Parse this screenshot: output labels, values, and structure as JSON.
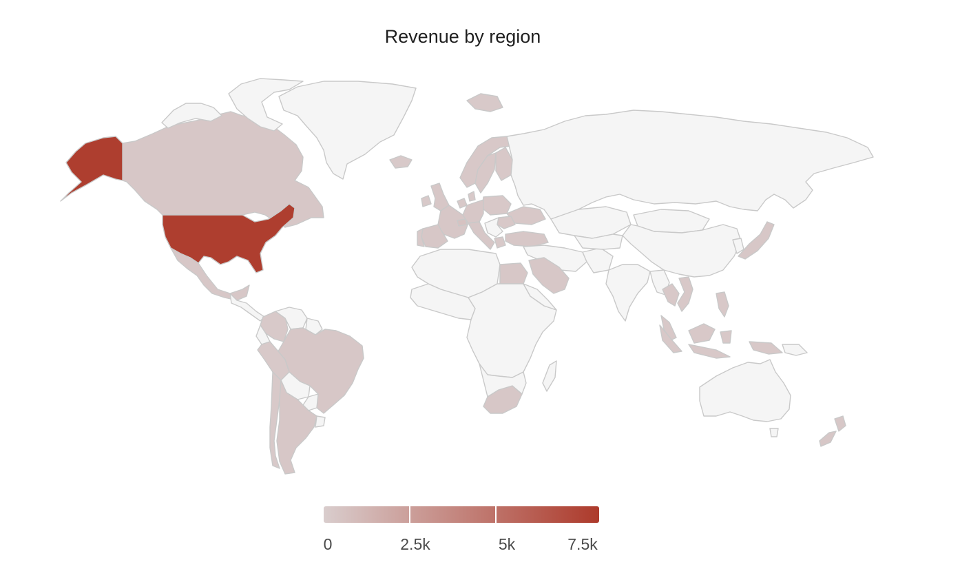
{
  "title": "Revenue by region",
  "colors": {
    "no_data": "#f5f5f5",
    "border": "#c9c9c9",
    "scale_low": "#d9cdcd",
    "scale_high": "#ad3a2b"
  },
  "legend": {
    "min": 0,
    "max": 8000,
    "ticks": [
      {
        "label": "0",
        "value": 0
      },
      {
        "label": "2.5k",
        "value": 2500
      },
      {
        "label": "5k",
        "value": 5000
      },
      {
        "label": "7.5k",
        "value": 7500
      }
    ]
  },
  "chart_data": {
    "type": "choropleth",
    "title": "Revenue by region",
    "scale": {
      "min": 0,
      "max": 8000
    },
    "regions": [
      {
        "region": "United States",
        "value": 7800
      },
      {
        "region": "Canada",
        "value": 300
      },
      {
        "region": "Mexico",
        "value": 300
      },
      {
        "region": "Brazil",
        "value": 300
      },
      {
        "region": "Argentina",
        "value": 300
      },
      {
        "region": "Colombia",
        "value": 200
      },
      {
        "region": "Peru",
        "value": 200
      },
      {
        "region": "Chile",
        "value": 200
      },
      {
        "region": "United Kingdom",
        "value": 300
      },
      {
        "region": "Ireland",
        "value": 200
      },
      {
        "region": "Spain",
        "value": 300
      },
      {
        "region": "Portugal",
        "value": 200
      },
      {
        "region": "France",
        "value": 300
      },
      {
        "region": "Germany",
        "value": 300
      },
      {
        "region": "Italy",
        "value": 300
      },
      {
        "region": "Poland",
        "value": 250
      },
      {
        "region": "Sweden",
        "value": 250
      },
      {
        "region": "Norway",
        "value": 250
      },
      {
        "region": "Finland",
        "value": 250
      },
      {
        "region": "Denmark",
        "value": 200
      },
      {
        "region": "Netherlands",
        "value": 200
      },
      {
        "region": "Switzerland",
        "value": 600
      },
      {
        "region": "Turkey",
        "value": 300
      },
      {
        "region": "Ukraine",
        "value": 250
      },
      {
        "region": "Romania",
        "value": 250
      },
      {
        "region": "Greece",
        "value": 200
      },
      {
        "region": "Egypt",
        "value": 300
      },
      {
        "region": "Saudi Arabia",
        "value": 300
      },
      {
        "region": "South Africa",
        "value": 300
      },
      {
        "region": "Japan",
        "value": 300
      },
      {
        "region": "Thailand",
        "value": 250
      },
      {
        "region": "Vietnam",
        "value": 250
      },
      {
        "region": "Malaysia",
        "value": 250
      },
      {
        "region": "Indonesia",
        "value": 250
      },
      {
        "region": "Philippines",
        "value": 250
      },
      {
        "region": "New Zealand",
        "value": 300
      },
      {
        "region": "Iceland",
        "value": 200
      },
      {
        "region": "Svalbard",
        "value": 200
      }
    ]
  }
}
